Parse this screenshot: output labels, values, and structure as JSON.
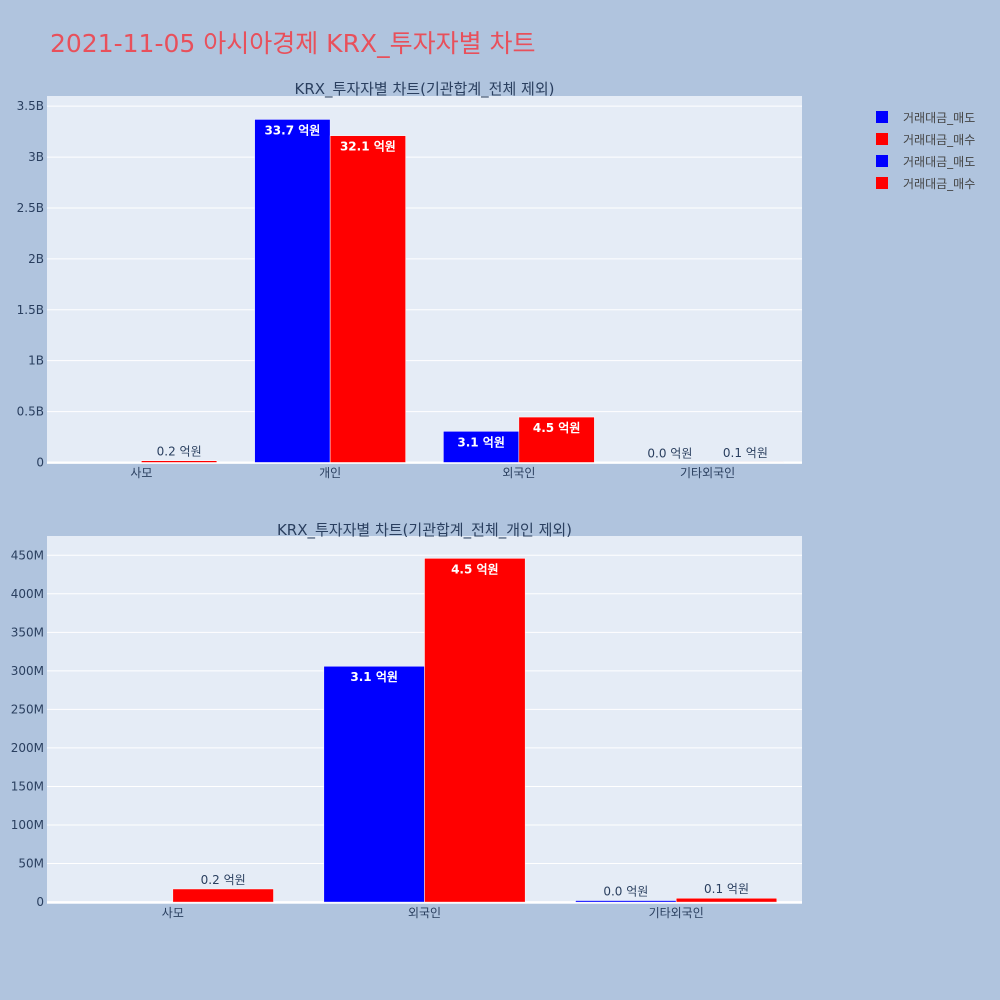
{
  "title": "2021-11-05 아시아경제 KRX_투자자별 차트",
  "legend": [
    {
      "name": "거래대금_매도",
      "color": "#0000ff"
    },
    {
      "name": "거래대금_매수",
      "color": "#ff0000"
    },
    {
      "name": "거래대금_매도",
      "color": "#0000ff"
    },
    {
      "name": "거래대금_매수",
      "color": "#ff0000"
    }
  ],
  "chart_data": [
    {
      "type": "bar",
      "title": "KRX_투자자별 차트(기관합계_전체 제외)",
      "categories": [
        "사모",
        "개인",
        "외국인",
        "기타외국인"
      ],
      "ylim": [
        -15000000,
        3600000000
      ],
      "yticks": [
        0,
        500000000,
        1000000000,
        1500000000,
        2000000000,
        2500000000,
        3000000000,
        3500000000
      ],
      "ytick_labels": [
        "0",
        "0.5B",
        "1B",
        "1.5B",
        "2B",
        "2.5B",
        "3B",
        "3.5B"
      ],
      "grid": true,
      "legend_position": "top-right",
      "series": [
        {
          "name": "거래대금_매도",
          "color": "#0000ff",
          "values": [
            0,
            3370000000,
            306000000,
            2000000
          ],
          "labels": [
            "",
            "33.7 억원",
            "3.1 억원",
            "0.0 억원"
          ]
        },
        {
          "name": "거래대금_매수",
          "color": "#ff0000",
          "values": [
            17000000,
            3210000000,
            446000000,
            5000000
          ],
          "labels": [
            "0.2 억원",
            "32.1 억원",
            "4.5 억원",
            "0.1 억원"
          ]
        }
      ]
    },
    {
      "type": "bar",
      "title": "KRX_투자자별 차트(기관합계_전체_개인 제외)",
      "categories": [
        "사모",
        "외국인",
        "기타외국인"
      ],
      "ylim": [
        -2500000,
        475000000
      ],
      "yticks": [
        0,
        50000000,
        100000000,
        150000000,
        200000000,
        250000000,
        300000000,
        350000000,
        400000000,
        450000000
      ],
      "ytick_labels": [
        "0",
        "50M",
        "100M",
        "150M",
        "200M",
        "250M",
        "300M",
        "350M",
        "400M",
        "450M"
      ],
      "grid": true,
      "series": [
        {
          "name": "거래대금_매도",
          "color": "#0000ff",
          "values": [
            0,
            306000000,
            2000000
          ],
          "labels": [
            "",
            "3.1 억원",
            "0.0 억원"
          ]
        },
        {
          "name": "거래대금_매수",
          "color": "#ff0000",
          "values": [
            17000000,
            446000000,
            5000000
          ],
          "labels": [
            "0.2 억원",
            "4.5 억원",
            "0.1 억원"
          ]
        }
      ]
    }
  ]
}
